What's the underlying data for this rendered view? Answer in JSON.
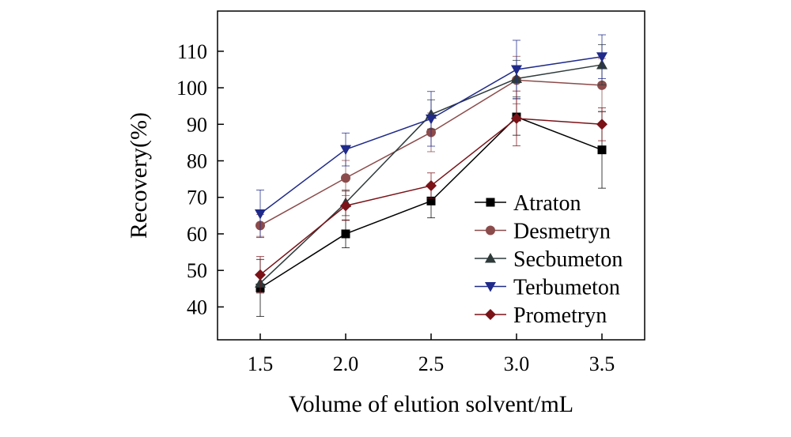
{
  "chart_data": {
    "type": "line",
    "title": "",
    "xlabel": "Volume of elution solvent/mL",
    "ylabel": "Recovery(%)",
    "x": [
      1.5,
      2.0,
      2.5,
      3.0,
      3.5
    ],
    "xlim": [
      1.25,
      3.75
    ],
    "ylim": [
      31,
      121
    ],
    "x_ticks": [
      "1.5",
      "2.0",
      "2.5",
      "3.0",
      "3.5"
    ],
    "y_ticks": [
      40,
      50,
      60,
      70,
      80,
      90,
      100,
      110
    ],
    "legend_position": "lower-right",
    "series": [
      {
        "name": "Atraton",
        "marker": "square",
        "color": "#000000",
        "values": [
          45.2,
          60.0,
          69.0,
          92.0,
          83.0
        ],
        "errors": [
          7.8,
          3.8,
          4.6,
          5.0,
          10.5
        ]
      },
      {
        "name": "Desmetryn",
        "marker": "circle",
        "color": "#8c4b4b",
        "values": [
          62.3,
          75.3,
          87.8,
          102.1,
          100.7
        ],
        "errors": [
          3.0,
          4.8,
          5.3,
          6.5,
          7.3
        ]
      },
      {
        "name": "Secbumeton",
        "marker": "triangle-up",
        "color": "#2e3a3a",
        "values": [
          46.5,
          68.5,
          92.7,
          102.5,
          106.3
        ],
        "errors": [
          2.5,
          3.5,
          4.0,
          5.0,
          5.5
        ]
      },
      {
        "name": "Terbumeton",
        "marker": "triangle-down",
        "color": "#1f2a8a",
        "values": [
          65.5,
          83.1,
          91.5,
          105.0,
          108.5
        ],
        "errors": [
          6.5,
          4.5,
          7.5,
          8.0,
          6.0
        ]
      },
      {
        "name": "Prometryn",
        "marker": "diamond",
        "color": "#7a1218",
        "values": [
          48.8,
          67.7,
          73.2,
          91.6,
          90.0
        ],
        "errors": [
          5.0,
          4.0,
          3.5,
          7.5,
          4.5
        ]
      }
    ]
  }
}
